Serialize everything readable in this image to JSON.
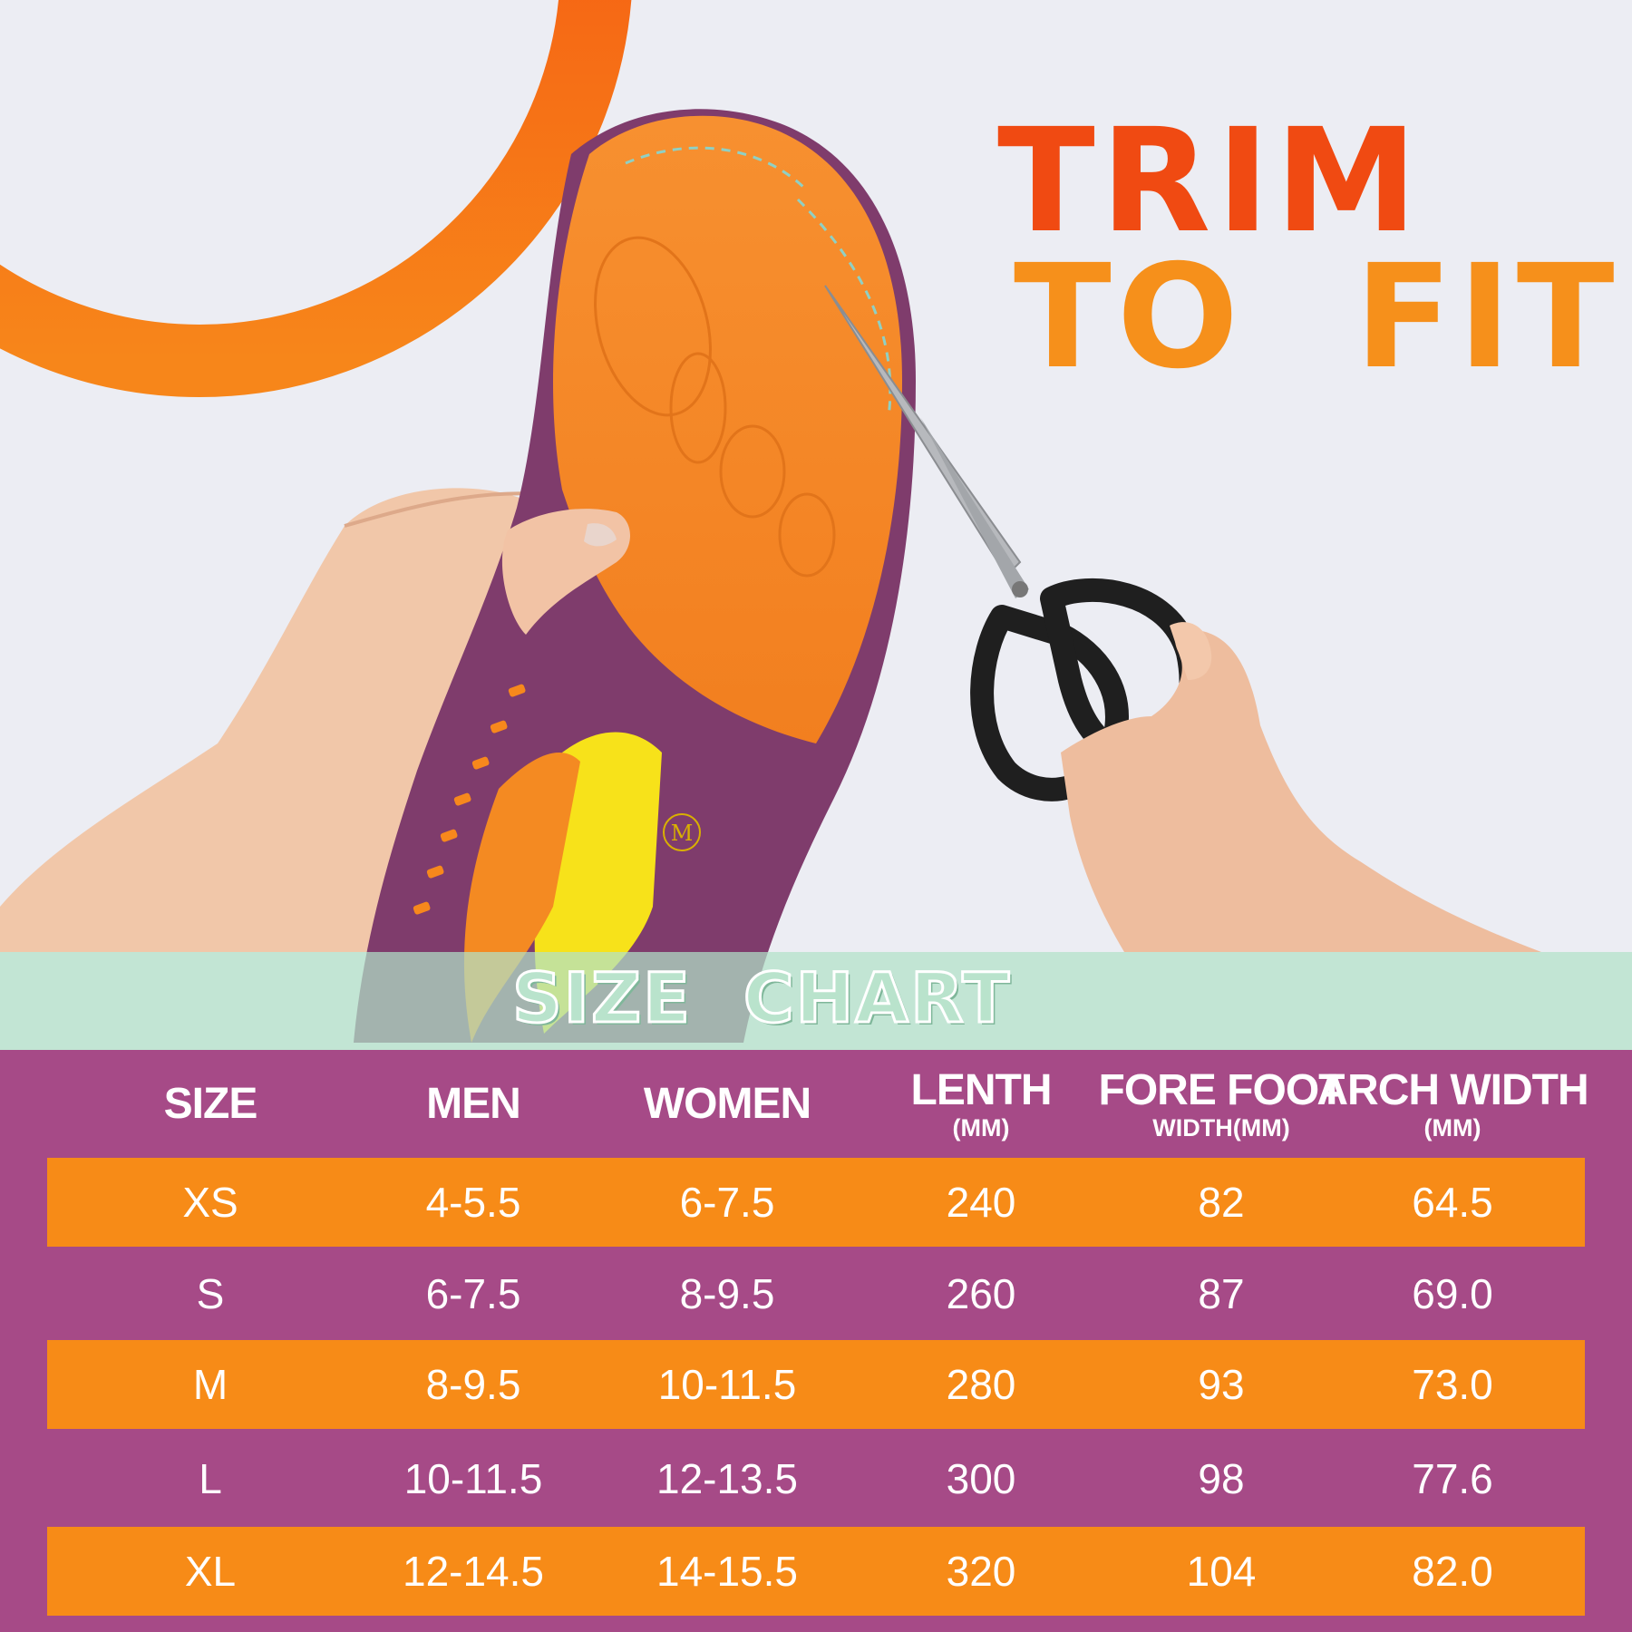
{
  "headline": {
    "line1": "TRIM",
    "line2": "TO  FIT"
  },
  "banner": "SIZE  CHART",
  "colors": {
    "accent_red": "#f04a12",
    "accent_orange": "#f6901b",
    "table_bg": "#a64a87",
    "row_orange": "#f78b17",
    "banner_mint": "#b2e2c8"
  },
  "table": {
    "headers": [
      {
        "main": "SIZE",
        "sub": ""
      },
      {
        "main": "MEN",
        "sub": ""
      },
      {
        "main": "WOMEN",
        "sub": ""
      },
      {
        "main": "LENTH",
        "sub": "(MM)"
      },
      {
        "main": "FORE FOOT",
        "sub": "WIDTH(MM)"
      },
      {
        "main": "ARCH WIDTH",
        "sub": "(MM)"
      }
    ],
    "rows": [
      [
        "XS",
        "4-5.5",
        "6-7.5",
        "240",
        "82",
        "64.5"
      ],
      [
        "S",
        "6-7.5",
        "8-9.5",
        "260",
        "87",
        "69.0"
      ],
      [
        "M",
        "8-9.5",
        "10-11.5",
        "280",
        "93",
        "73.0"
      ],
      [
        "L",
        "10-11.5",
        "12-13.5",
        "300",
        "98",
        "77.6"
      ],
      [
        "XL",
        "12-14.5",
        "14-15.5",
        "320",
        "104",
        "82.0"
      ]
    ]
  },
  "insole_marking": "M"
}
